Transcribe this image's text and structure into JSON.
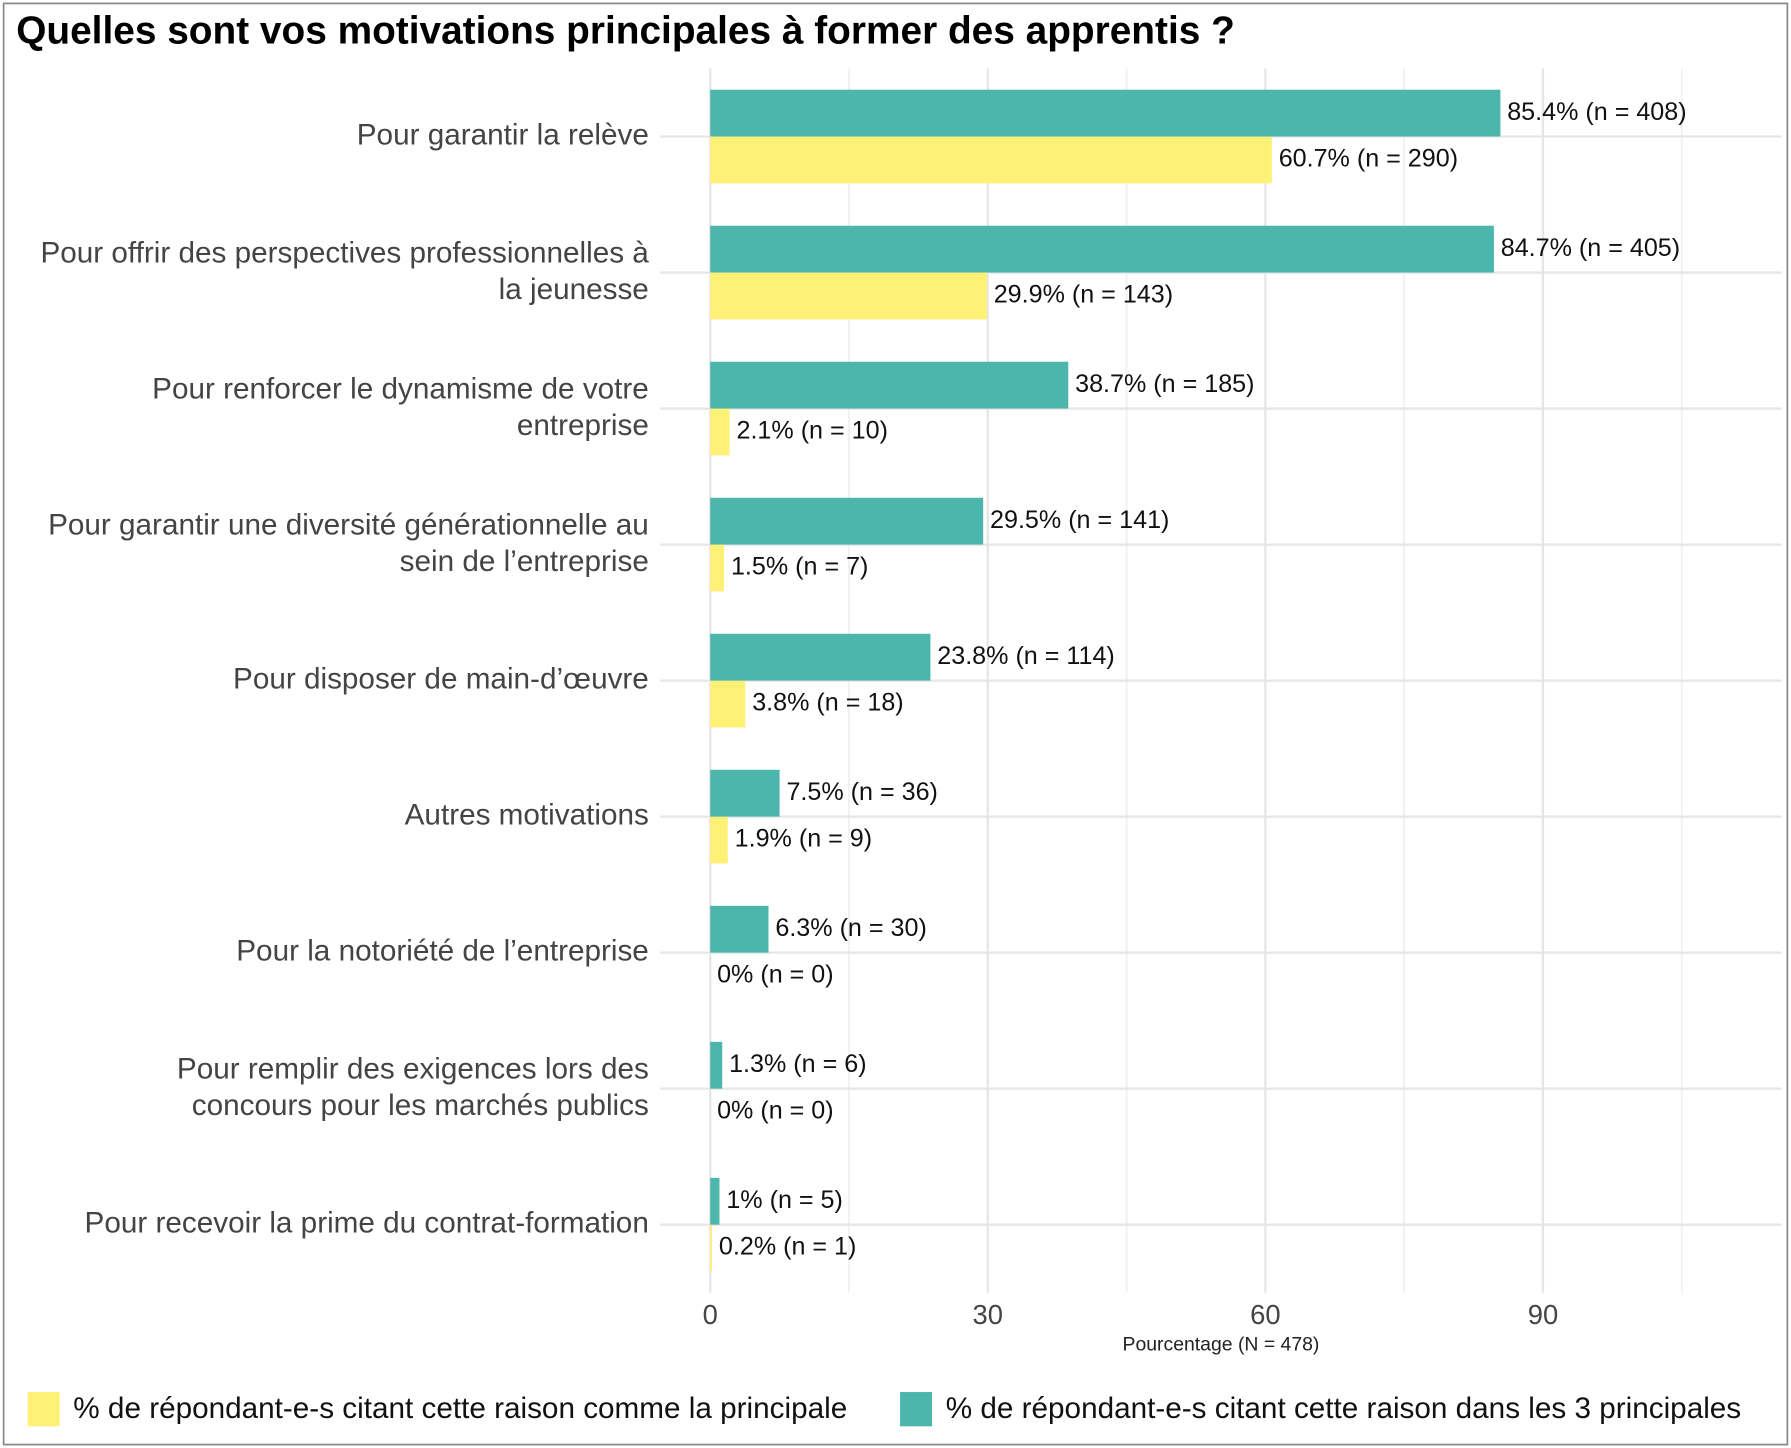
{
  "chart_data": {
    "type": "hbar",
    "title": "Quelles sont vos motivations principales à former des apprentis ?",
    "x_label": "Pourcentage (N = 478)",
    "categories": [
      "Pour garantir la relève",
      "Pour offrir des perspectives professionnelles à\nla jeunesse",
      "Pour renforcer le dynamisme de votre\nentreprise",
      "Pour garantir une diversité générationnelle au\nsein de l’entreprise",
      "Pour disposer de main-d’œuvre",
      "Autres motivations",
      "Pour la notoriété de l’entreprise",
      "Pour remplir des exigences lors des\nconcours pour les marchés publics",
      "Pour recevoir la prime du contrat-formation"
    ],
    "series": [
      {
        "name": "% de répondant-e-s citant cette raison comme la principale",
        "color": "#fff176",
        "values": [
          60.7,
          29.9,
          2.1,
          1.5,
          3.8,
          1.9,
          0,
          0,
          0.2
        ],
        "value_labels": [
          "60.7% (n = 290)",
          "29.9% (n = 143)",
          "2.1% (n = 10)",
          "1.5% (n = 7)",
          "3.8% (n = 18)",
          "1.9% (n = 9)",
          "0% (n = 0)",
          "0% (n = 0)",
          "0.2% (n = 1)"
        ]
      },
      {
        "name": "% de répondant-e-s citant cette raison dans les 3 principales",
        "color": "#4db6ac",
        "values": [
          85.4,
          84.7,
          38.7,
          29.5,
          23.8,
          7.5,
          6.3,
          1.3,
          1
        ],
        "value_labels": [
          "85.4% (n = 408)",
          "84.7% (n = 405)",
          "38.7% (n = 185)",
          "29.5% (n = 141)",
          "23.8% (n = 114)",
          "7.5% (n = 36)",
          "6.3% (n = 30)",
          "1.3% (n = 6)",
          "1% (n = 5)"
        ]
      }
    ],
    "xlim": [
      -5.4,
      115.8
    ],
    "xticks": [
      0,
      30,
      60,
      90
    ],
    "grid": true,
    "legend": "bottom"
  }
}
